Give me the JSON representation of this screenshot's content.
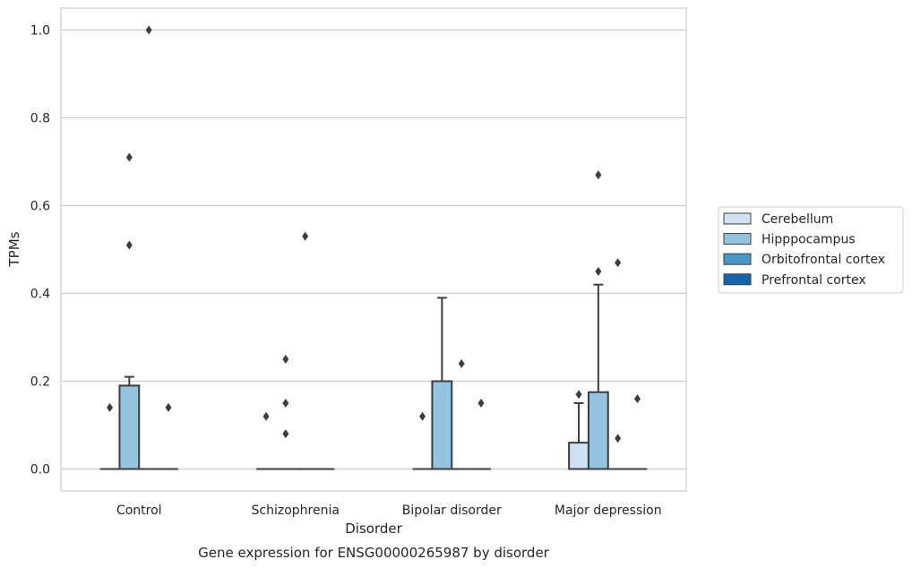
{
  "chart_data": {
    "type": "boxplot",
    "title": "",
    "caption": "Gene expression for ENSG00000265987 by disorder",
    "xlabel": "Disorder",
    "ylabel": "TPMs",
    "categories": [
      "Control",
      "Schizophrenia",
      "Bipolar disorder",
      "Major depression"
    ],
    "ylim": [
      -0.05,
      1.05
    ],
    "yticks": [
      0.0,
      0.2,
      0.4,
      0.6,
      0.8,
      1.0
    ],
    "ytick_labels": [
      "0.0",
      "0.2",
      "0.4",
      "0.6",
      "0.8",
      "1.0"
    ],
    "grid": "horizontal",
    "legend_position": "right",
    "series": [
      {
        "name": "Cerebellum",
        "color": "#d0e1f2",
        "boxes": [
          {
            "q1": 0,
            "median": 0,
            "q3": 0,
            "whisker_low": 0,
            "whisker_high": 0,
            "outliers": [
              0.14
            ]
          },
          {
            "q1": 0,
            "median": 0,
            "q3": 0,
            "whisker_low": 0,
            "whisker_high": 0,
            "outliers": [
              0.12
            ]
          },
          {
            "q1": 0,
            "median": 0,
            "q3": 0,
            "whisker_low": 0,
            "whisker_high": 0,
            "outliers": [
              0.12
            ]
          },
          {
            "q1": 0,
            "median": 0,
            "q3": 0.06,
            "whisker_low": 0,
            "whisker_high": 0.15,
            "outliers": [
              0.17
            ]
          }
        ]
      },
      {
        "name": "Hipppocampus",
        "color": "#94c4df",
        "boxes": [
          {
            "q1": 0,
            "median": 0,
            "q3": 0.19,
            "whisker_low": 0,
            "whisker_high": 0.21,
            "outliers": [
              0.51,
              0.71
            ]
          },
          {
            "q1": 0,
            "median": 0,
            "q3": 0,
            "whisker_low": 0,
            "whisker_high": 0,
            "outliers": [
              0.08,
              0.15,
              0.25
            ]
          },
          {
            "q1": 0,
            "median": 0,
            "q3": 0.2,
            "whisker_low": 0,
            "whisker_high": 0.39,
            "outliers": []
          },
          {
            "q1": 0,
            "median": 0,
            "q3": 0.175,
            "whisker_low": 0,
            "whisker_high": 0.42,
            "outliers": [
              0.45,
              0.67
            ]
          }
        ]
      },
      {
        "name": "Orbitofrontal cortex",
        "color": "#4a98c9",
        "boxes": [
          {
            "q1": 0,
            "median": 0,
            "q3": 0,
            "whisker_low": 0,
            "whisker_high": 0,
            "outliers": [
              1.0
            ]
          },
          {
            "q1": 0,
            "median": 0,
            "q3": 0,
            "whisker_low": 0,
            "whisker_high": 0,
            "outliers": [
              0.53
            ]
          },
          {
            "q1": 0,
            "median": 0,
            "q3": 0,
            "whisker_low": 0,
            "whisker_high": 0,
            "outliers": [
              0.24
            ]
          },
          {
            "q1": 0,
            "median": 0,
            "q3": 0,
            "whisker_low": 0,
            "whisker_high": 0,
            "outliers": [
              0.07,
              0.47
            ]
          }
        ]
      },
      {
        "name": "Prefrontal cortex",
        "color": "#1764ab",
        "boxes": [
          {
            "q1": 0,
            "median": 0,
            "q3": 0,
            "whisker_low": 0,
            "whisker_high": 0,
            "outliers": [
              0.14
            ]
          },
          {
            "q1": 0,
            "median": 0,
            "q3": 0,
            "whisker_low": 0,
            "whisker_high": 0,
            "outliers": []
          },
          {
            "q1": 0,
            "median": 0,
            "q3": 0,
            "whisker_low": 0,
            "whisker_high": 0,
            "outliers": [
              0.15
            ]
          },
          {
            "q1": 0,
            "median": 0,
            "q3": 0,
            "whisker_low": 0,
            "whisker_high": 0,
            "outliers": [
              0.16
            ]
          }
        ]
      }
    ]
  }
}
